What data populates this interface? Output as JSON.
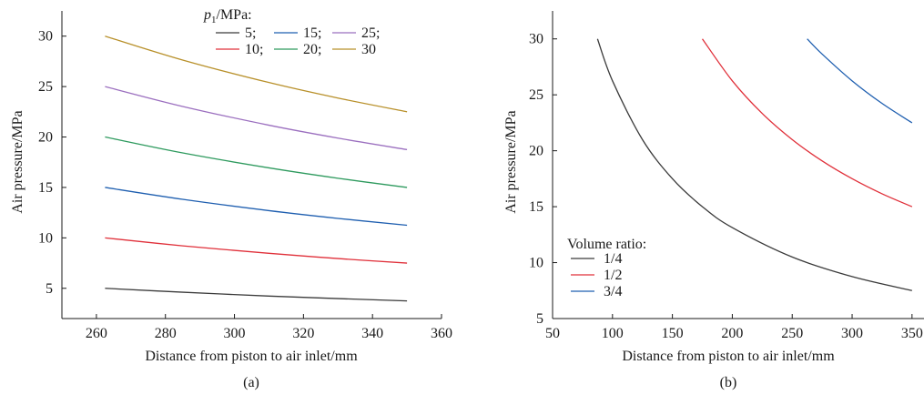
{
  "chart_data": [
    {
      "type": "line",
      "panel_label": "(a)",
      "xlabel": "Distance from piston to air inlet/mm",
      "ylabel": "Air pressure/MPa",
      "xlim": [
        250,
        360
      ],
      "ylim": [
        2,
        32.5
      ],
      "xticks": [
        260,
        280,
        300,
        320,
        340,
        360
      ],
      "yticks": [
        5,
        10,
        15,
        20,
        25,
        30
      ],
      "grid": false,
      "legend_placement": "top",
      "legend_title_prefix": "p",
      "legend_title_sub": "1",
      "legend_title_suffix": "/MPa:",
      "series": [
        {
          "name": "5;",
          "color": "#3a3a3a",
          "x": [
            262.5,
            285,
            310,
            330,
            350
          ],
          "y": [
            5.0,
            4.61,
            4.23,
            3.98,
            3.75
          ]
        },
        {
          "name": "10;",
          "color": "#e0303a",
          "x": [
            262.5,
            285,
            310,
            330,
            350
          ],
          "y": [
            10.0,
            9.21,
            8.47,
            7.95,
            7.5
          ]
        },
        {
          "name": "15;",
          "color": "#1f5fb0",
          "x": [
            262.5,
            285,
            310,
            330,
            350
          ],
          "y": [
            15.0,
            13.82,
            12.7,
            11.93,
            11.25
          ]
        },
        {
          "name": "20;",
          "color": "#2e9a5e",
          "x": [
            262.5,
            285,
            310,
            330,
            350
          ],
          "y": [
            20.0,
            18.42,
            16.94,
            15.91,
            15.0
          ]
        },
        {
          "name": "25;",
          "color": "#9b6fbf",
          "x": [
            262.5,
            285,
            310,
            330,
            350
          ],
          "y": [
            25.0,
            23.03,
            21.17,
            19.89,
            18.75
          ]
        },
        {
          "name": "30",
          "color": "#b8902a",
          "x": [
            262.5,
            285,
            310,
            330,
            350
          ],
          "y": [
            30.0,
            27.63,
            25.4,
            23.86,
            22.5
          ]
        }
      ]
    },
    {
      "type": "line",
      "panel_label": "(b)",
      "xlabel": "Distance from piston to air inlet/mm",
      "ylabel": "Air pressure/MPa",
      "xlim": [
        50,
        360
      ],
      "ylim": [
        5,
        32.5
      ],
      "xticks": [
        50,
        100,
        150,
        200,
        250,
        300,
        350
      ],
      "yticks": [
        5,
        10,
        15,
        20,
        25,
        30
      ],
      "grid": false,
      "legend_placement": "bottom-left",
      "legend_title": "Volume ratio:",
      "series": [
        {
          "name": "1/4",
          "color": "#3a3a3a",
          "x": [
            87.5,
            100,
            125,
            150,
            175,
            200,
            250,
            300,
            350
          ],
          "y": [
            30.0,
            26.25,
            21.0,
            17.5,
            15.0,
            13.13,
            10.5,
            8.75,
            7.5
          ]
        },
        {
          "name": "1/2",
          "color": "#e0303a",
          "x": [
            175,
            200,
            225,
            250,
            275,
            300,
            325,
            350
          ],
          "y": [
            30.0,
            26.25,
            23.33,
            21.0,
            19.09,
            17.5,
            16.15,
            15.0
          ]
        },
        {
          "name": "3/4",
          "color": "#1f5fb0",
          "x": [
            262.5,
            275,
            300,
            325,
            350
          ],
          "y": [
            30.0,
            28.64,
            26.25,
            24.23,
            22.5
          ]
        }
      ]
    }
  ]
}
